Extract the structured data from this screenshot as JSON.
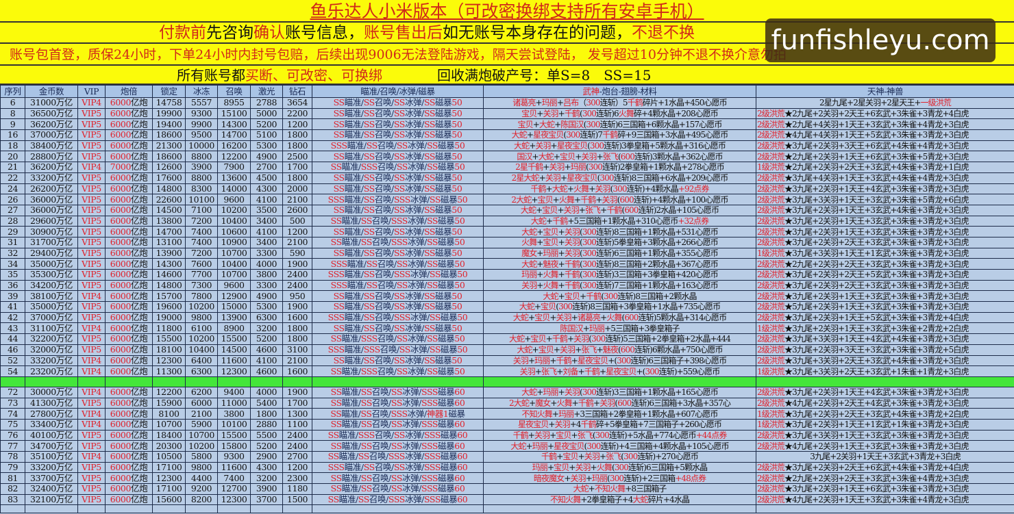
{
  "banners": {
    "title": "鱼乐达人小米版本（可改密换绑支持所有安卓手机）",
    "line2": [
      {
        "t": "付款前",
        "c": "red"
      },
      {
        "t": "先咨询",
        "c": "black"
      },
      {
        "t": "确认",
        "c": "red"
      },
      {
        "t": "账号信息，",
        "c": "black"
      },
      {
        "t": "账号售出后",
        "c": "red"
      },
      {
        "t": "如无账号本身存在的问题，",
        "c": "black"
      },
      {
        "t": "不退不换",
        "c": "red"
      }
    ],
    "line3": "账号包首登，质保24小时，下单24小时内封号包赔，后续出现9006无法登陆游戏，隔天尝试登陆，  发号超过10分钟不退不换介意勿拍",
    "line4": [
      {
        "t": "所有账号都",
        "c": "black"
      },
      {
        "t": "买断、可改密、可换绑",
        "c": "red"
      },
      {
        "t": "　　　　回收满炮破产号：单S=8　SS=15",
        "c": "black"
      }
    ]
  },
  "watermark": "funfishleyu.com",
  "columns": [
    "序列",
    "金币数",
    "VIP",
    "炮倍",
    "锁定",
    "冰冻",
    "召唤",
    "激光",
    "钻石",
    "瞄准/召唤/冰弹/磁暴",
    "武神-炮台-翅膀-材料",
    "天神-神兽"
  ],
  "colors": {
    "banner": "#fbfb0a",
    "accent_red": "#e0202a",
    "table_bg": "#b9cde6",
    "separator": "#44e63a"
  },
  "rows_a": [
    [
      "6",
      "31000万亿",
      "VIP4",
      "6000亿炮",
      "14758",
      "5557",
      "8955",
      "2788",
      "3654",
      "SS瞄准/SS召唤/SS冰弹/SS磁暴50",
      "诸葛亮+玛丽+吕布（300连斩）5千鹤碎片+1水晶+450心愿币",
      "2星九尾+2星关羽+2星天王+一级洪荒"
    ],
    [
      "8",
      "36500万亿",
      "VIP5",
      "6000亿炮",
      "19900",
      "9300",
      "15100",
      "5000",
      "2200",
      "SS瞄准/SS召唤/SS冰弹/SS磁暴50",
      "宝贝+关羽+千鹤(300连斩)6火舞碎+4颗水晶+208心愿币",
      "2级洪荒★2九尾+2关羽+2天王+6玄武+3朱雀+3青龙+4白虎"
    ],
    [
      "9",
      "36200万亿",
      "VIP5",
      "6000亿炮",
      "19400",
      "9900",
      "14300",
      "5200",
      "1200",
      "SS瞄准/SS召唤/SS冰弹/SS磁暴50",
      "宝贝+大蛇+陈国汉(300连斩)6三国箱+6颗水晶+157心愿币",
      "2级洪荒★2九尾+4关羽+1天王+3玄武+3朱雀+4青龙+3白虎"
    ],
    [
      "16",
      "37000万亿",
      "VIP5",
      "6000亿炮",
      "18600",
      "9500",
      "14700",
      "5100",
      "1800",
      "SS瞄准/SS召唤/SS冰弹/SS磁暴50",
      "大蛇+星夜宝贝(300连斩)7千鹤碎+9三国箱+3水晶+495心愿币",
      "2级洪荒★4九尾+4关羽+1天王+5玄武+3朱雀+3青龙+3白虎"
    ],
    [
      "18",
      "38400万亿",
      "VIP5",
      "6000亿炮",
      "21300",
      "10000",
      "16200",
      "5300",
      "1800",
      "SSS瞄准/SS召唤/SS冰弹/SS磁暴50",
      "大蛇+关羽+星夜宝贝(300连斩)3拳皇箱+5颗水晶+316心愿币",
      "2级洪荒★3九尾+2关羽+3天王+6玄武+4朱雀+4青龙+3白虎"
    ],
    [
      "20",
      "28800万亿",
      "VIP5",
      "6000亿炮",
      "18600",
      "8800",
      "12200",
      "4900",
      "2500",
      "SS瞄准/SS召唤/SS冰弹/SS磁暴50",
      "国汉+大蛇+宝贝+关羽+张飞(600连斩)3颗水晶+362心愿币",
      "2级洪荒★2九尾+2关羽+1天王+6玄武+3朱雀+5青龙+3白虎"
    ],
    [
      "21",
      "36200万亿",
      "VIP4",
      "7000亿炮",
      "12600",
      "3900",
      "7900",
      "2700",
      "1700",
      "SS瞄准/SSS召唤/SS冰弹/SS磁暴50",
      "2星千鹤+关羽+玛丽(300连斩)2拳皇箱+1颗水晶+278心愿币",
      "1级洪荒★2九尾+2关羽+2天王+3玄武+4朱雀+3青龙+1白虎"
    ],
    [
      "22",
      "33200万亿",
      "VIP5",
      "6000亿炮",
      "17600",
      "8800",
      "13600",
      "4500",
      "1800",
      "SS瞄准/SS召唤/SS冰弹/SS磁暴50",
      "2星大蛇+关羽+星夜宝贝(300连斩)8三国箱+6水晶+209心愿币",
      "2级洪荒★3九尾+4关羽+1天王+3玄武+4朱雀+4青龙+3白虎"
    ],
    [
      "24",
      "26200万亿",
      "VIP5",
      "6000亿炮",
      "14800",
      "8300",
      "14000",
      "4300",
      "2000",
      "SS瞄准/SS召唤/SS冰弹/SS磁暴50",
      "千鹤+大蛇+火舞+关羽(300连斩)+4颗水晶+92点券",
      "2级洪荒★3九尾+2关羽+1天王+4玄武+3朱雀+3青龙+3白虎"
    ],
    [
      "26",
      "36000万亿",
      "VIP5",
      "6000亿炮",
      "22600",
      "10100",
      "9600",
      "4100",
      "2100",
      "SSS瞄准/SS召唤/SSS冰弹/SS磁暴50",
      "2大蛇+宝贝+火舞+千鹤+关羽(600连斩)+4颗水晶+100心愿币",
      "2级洪荒★3九尾+3关羽+1天王+3玄武+3朱雀+5青龙+6白虎"
    ],
    [
      "27",
      "36000万亿",
      "VIP5",
      "6000亿炮",
      "14500",
      "7100",
      "10200",
      "3500",
      "2600",
      "SS瞄准/SS召唤/SS冰弹/SS磁暴50",
      "大蛇+宝贝+关羽+张飞+千鹤(600连斩)2水晶+105心愿币",
      "2级洪荒★3九尾+2关羽+1天王+3玄武+4朱雀+3青龙+3白虎"
    ],
    [
      "28",
      "29600万亿",
      "VIP5",
      "6000亿炮",
      "13800",
      "7200",
      "10400",
      "3400",
      "500",
      "SS瞄准/SS召唤/SSS冰弹/SS磁暴50",
      "大蛇+千鹤+5三国箱+1颗水晶+310心愿币+32点券",
      "2级洪荒★3九尾+2关羽+1天王+3玄武+3朱雀+3青龙+3白虎"
    ],
    [
      "29",
      "30900万亿",
      "VIP5",
      "6000亿炮",
      "14700",
      "7400",
      "10600",
      "4100",
      "1200",
      "SS瞄准/SS召唤/SS冰弹/SS磁暴50",
      "大蛇+宝贝+关羽(300连斩)8三国箱+1颗水晶+531心愿币",
      "2级洪荒★3九尾+2关羽+1天王+3玄武+3朱雀+3青龙+3白虎"
    ],
    [
      "31",
      "31700万亿",
      "VIP5",
      "6000亿炮",
      "13100",
      "7400",
      "10900",
      "3400",
      "2100",
      "SS瞄准/SS召唤/SSS冰弹/SS磁暴50",
      "火舞+宝贝+关羽(300连斩)5拳皇箱+3颗水晶+266心愿币",
      "2级洪荒★3九尾+2关羽+2天王+3玄武+3朱雀+3青龙+3白虎"
    ],
    [
      "32",
      "29400万亿",
      "VIP5",
      "6000亿炮",
      "13900",
      "7200",
      "10700",
      "3300",
      "590",
      "SS瞄准/SS召唤/SS冰弹/SS磁暴50",
      "魔女+玛丽+关羽(300连斩)6三国箱+1颗水晶+355心愿币",
      "1级洪荒★3九尾+3关羽+1天王+1玄武+3朱雀+3青龙+3白虎"
    ],
    [
      "34",
      "35000万亿",
      "VIP5",
      "6000亿炮",
      "14300",
      "7600",
      "10400",
      "4000",
      "1900",
      "SSS瞄准/SS召唤/SS冰弹/SS磁暴50",
      "大蛇+魅夜+千鹤(300连斩)8三国箱+2颗水晶+367心愿币",
      "2级洪荒★2九尾+2关羽+2天王+3玄武+3朱雀+3青龙+3白虎"
    ],
    [
      "35",
      "35300万亿",
      "VIP5",
      "6000亿炮",
      "14600",
      "7700",
      "10700",
      "3800",
      "2400",
      "SSS瞄准/SS召唤/SSS冰弹/SS磁暴50",
      "玛丽+火舞+千鹤(300连斩)3三国箱+3拳皇箱+420心愿币",
      "2级洪荒★3九尾+2关羽+2天王+5玄武+3朱雀+3青龙+3白虎"
    ],
    [
      "36",
      "34200万亿",
      "VIP5",
      "6000亿炮",
      "14800",
      "7300",
      "9600",
      "3300",
      "2400",
      "SSS瞄准/SS召唤/SS冰弹/SS磁暴50",
      "关羽+火舞+千鹤(300连斩)7三国箱+1颗水晶+163心愿币",
      "2级洪荒★3九尾+2关羽+2天王+3玄武+3朱雀+3青龙+3白虎"
    ],
    [
      "39",
      "38100万亿",
      "VIP4",
      "6000亿炮",
      "15700",
      "7800",
      "12900",
      "4900",
      "950",
      "SS瞄准/SS召唤/SS冰弹/SS磁暴50",
      "大蛇+宝贝+千鹤(300连斩)8三国箱+2颗水晶",
      "2级洪荒★3九尾+2关羽+1天王+3玄武+3朱雀+3青龙+3白虎"
    ],
    [
      "41",
      "35000万亿",
      "VIP5",
      "6000亿炮",
      "19600",
      "10200",
      "15000",
      "5300",
      "1900",
      "SS瞄准/SS召唤/SS冰弹/SS磁暴50",
      "大蛇+宝贝(300连斩)8三国箱+3拳皇箱+1水晶+735心愿币",
      "2级洪荒★5九尾+2关羽+1天王+3玄武+3朱雀+3青龙+3白虎"
    ],
    [
      "42",
      "37000万亿",
      "VIP5",
      "6000亿炮",
      "19000",
      "9800",
      "13900",
      "6300",
      "1600",
      "SSS瞄准/SS召唤/SSS冰弹/SS磁暴50",
      "大蛇+宝贝+关羽+诸葛亮+火舞(600连斩)5颗水晶+314心愿币",
      "2级洪荒★3九尾+2关羽+1天王+5玄武+3朱雀+3青龙+4白虎"
    ],
    [
      "43",
      "31100万亿",
      "VIP4",
      "6000亿炮",
      "11800",
      "6100",
      "8900",
      "3200",
      "1800",
      "SS瞄准/SS召唤/SS冰弹/SS磁暴50",
      "陈国汉+玛丽+5三国箱+3拳皇箱子",
      "1级洪荒★3九尾+2关羽+1天王+3玄武+3朱雀+2青龙+2白虎"
    ],
    [
      "44",
      "32200万亿",
      "VIP5",
      "6000亿炮",
      "15500",
      "10200",
      "15500",
      "5200",
      "1800",
      "SS瞄准/SSS召唤/SS冰弹/SS磁暴50",
      "大蛇+宝贝+千鹤+关羽(300连斩)5三国箱+2拳皇箱+2水晶+444",
      "2级洪荒★3九尾+3关羽+1天王+4玄武+4朱雀+3青龙+3白虎"
    ],
    [
      "46",
      "32000万亿",
      "VIP5",
      "6000亿炮",
      "18100",
      "10400",
      "14500",
      "4600",
      "3100",
      "SSS瞄准/SSS召唤/SS冰弹/SS磁暴50",
      "大蛇+宝贝+关羽+张飞+魅夜(600连斩)6颗水晶+750心愿币",
      "2级洪荒★3九尾+2关羽+3天王+3玄武+3朱雀+3青龙+5白虎"
    ],
    [
      "52",
      "33200万亿",
      "VIP4",
      "6000亿炮",
      "12300",
      "6400",
      "11600",
      "4100",
      "2100",
      "SS瞄准/SS召唤/SS冰弹/SS磁暴50",
      "关羽+玛丽+千鹤+星夜宝贝+(300连斩)6三国箱子+398心愿币",
      "2级洪荒★3九尾+3关羽+2天王+3玄武+4朱雀+3青龙+3白虎"
    ],
    [
      "54",
      "23200万亿",
      "VIP4",
      "6000亿炮",
      "11300",
      "6300",
      "12300",
      "4600",
      "1600",
      "SS瞄准/SSS召唤/SS冰弹/SS磁暴50",
      "关羽+张飞+刘备+千鹤+星夜宝贝+(300连斩)+559心愿币",
      "1级洪荒★3九尾+3关羽+2天王+3玄武+1朱雀+1青龙+3白虎"
    ]
  ],
  "rows_b": [
    [
      "72",
      "30000万亿",
      "VIP4",
      "6000亿炮",
      "12200",
      "6200",
      "9400",
      "4000",
      "1900",
      "SS瞄准/SS召唤/SS冰弹/SSS磁暴60",
      "大蛇+玛丽+关羽(300连斩)3三国箱+1颗水晶+165心愿币",
      "2级洪荒★3九尾+2关羽+1天王+4玄武+3朱雀+3青龙+3白虎"
    ],
    [
      "73",
      "41300万亿",
      "VIP5",
      "6000亿炮",
      "15900",
      "6000",
      "11000",
      "5400",
      "1700",
      "SS瞄准/SS召唤/SS冰弹/SSS磁暴60",
      "2大蛇+魔女+火舞+千鹤+关羽(600连斩)6三国箱+3水晶+357心",
      "2级洪荒★4九尾+2关羽+2天王+4玄武+3朱雀+3青龙+3白虎"
    ],
    [
      "74",
      "27800万亿",
      "VIP4",
      "6000亿炮",
      "8100",
      "2100",
      "3800",
      "1800",
      "1300",
      "SS瞄准/SS召唤/SSS冰弹/神器1磁暴",
      "不知火舞+玛丽+3三国箱+2拳皇箱+1颗水晶+607心愿币",
      "1级洪荒★3九尾+2关羽+2天王+3玄武+4朱雀+3青龙+2白虎"
    ],
    [
      "75",
      "33400万亿",
      "VIP4",
      "6000亿炮",
      "10700",
      "5900",
      "10100",
      "2880",
      "1100",
      "SS瞄准/SS召唤/SS冰弹/SSS磁暴60",
      "星夜宝贝+关羽+4千鹤碎+5拳皇箱+7三国箱子+260心愿币",
      "1级洪荒★3九尾+2关羽+1天王+1玄武+1朱雀+3青龙+3白虎"
    ],
    [
      "76",
      "40100万亿",
      "VIP5",
      "6000亿炮",
      "18400",
      "10700",
      "15500",
      "5500",
      "2400",
      "SS瞄准/SSS召唤/SS冰弹/SSS磁暴60",
      "千鹤+关羽+宝贝+张飞(300连斩)+5水晶+774心愿币+44点券",
      "2级洪荒★3九尾+3关羽+1天王+3玄武+3朱雀+3青龙+3白虎"
    ],
    [
      "77",
      "34700万亿",
      "VIP5",
      "6000亿炮",
      "20300",
      "10200",
      "15800",
      "5200",
      "2400",
      "SS瞄准/SS召唤/SS冰弹/SSS磁暴60",
      "大蛇+玛丽+星夜宝贝(300连斩)+4三国箱+4颗水晶+105心愿币",
      "2级洪荒★4九尾+2关羽+1天王+3玄武+3朱雀+3青龙+3白虎"
    ],
    [
      "78",
      "35100万亿",
      "VIP4",
      "6000亿炮",
      "10500",
      "5800",
      "9300",
      "2900",
      "2700",
      "SS瞄准/SS召唤/SSS冰弹/SSS磁暴60",
      "千鹤+宝贝+关羽+张飞(300连斩)+270心愿币",
      "3九尾+2关羽+1天王+3玄武+3青龙+3白虎"
    ],
    [
      "79",
      "33200万亿",
      "VIP5",
      "6000亿炮",
      "17100",
      "9800",
      "11600",
      "4300",
      "1200",
      "SSS瞄准/SS召唤/SS冰弹/SSS磁暴60",
      "玛丽+宝贝+关羽+火舞(300连斩)6三国箱+5颗水晶",
      "2级洪荒★3九尾+2关羽+2天王+6玄武+4朱雀+3青龙+4白虎"
    ],
    [
      "81",
      "33700万亿",
      "VIP5",
      "6000亿炮",
      "12300",
      "4400",
      "7400",
      "3200",
      "2300",
      "SS瞄准/SS召唤/SS冰弹/SSS磁暴60",
      "暗夜魔女+关羽+玛丽(300连斩)+2三国箱+48点券",
      "2级洪荒★2九尾+2关羽+2天王+3玄武+3朱雀+4青龙+3白虎"
    ],
    [
      "82",
      "32400万亿",
      "VIP5",
      "6000亿炮",
      "17100",
      "9200",
      "12700",
      "3900",
      "1180",
      "SS瞄准/SS召唤/SS冰弹/SSS磁暴60",
      "大蛇+不知火舞+8三国箱子",
      "2级洪荒★3九尾+2关羽+1天王+6玄武+3朱雀+3青龙+3白虎"
    ],
    [
      "83",
      "32100万亿",
      "VIP5",
      "6000亿炮",
      "15600",
      "8200",
      "12300",
      "3700",
      "1500",
      "SS瞄准/SS召唤/SSS冰弹/SSS磁暴60",
      "不知火舞+2拳皇箱子+4大蛇碎片+4水晶",
      "2级洪荒★4九尾+2关羽+1天王+3玄武+3朱雀+4青龙+3白虎"
    ]
  ]
}
